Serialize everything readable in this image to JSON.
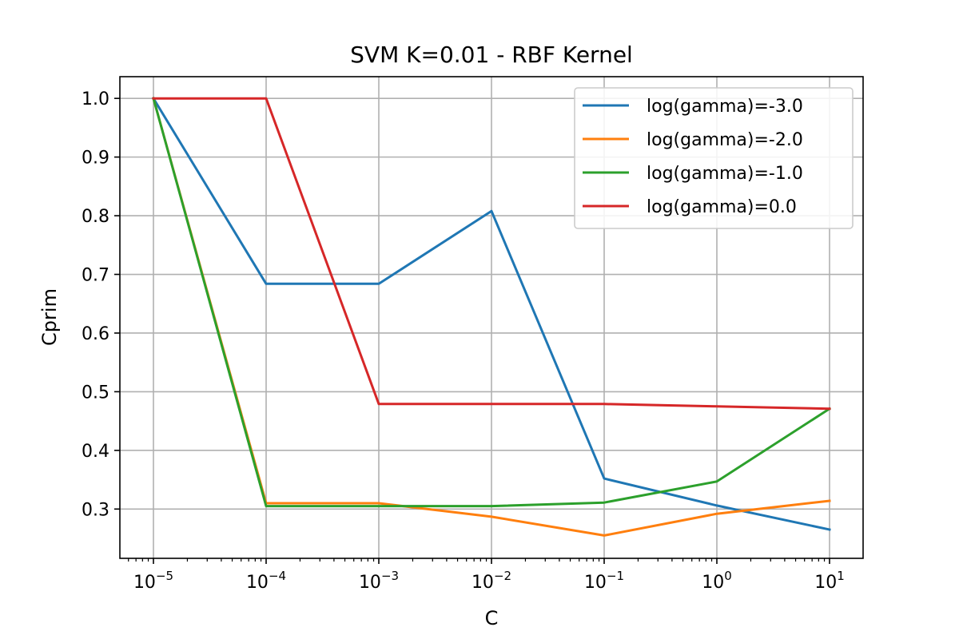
{
  "chart_data": {
    "type": "line",
    "title": "SVM K=0.01 - RBF Kernel",
    "xlabel": "C",
    "ylabel": "Cprim",
    "xscale": "log",
    "x": [
      1e-05,
      0.0001,
      0.001,
      0.01,
      0.1,
      1,
      10
    ],
    "x_tick_labels": [
      {
        "base": "10",
        "exp": "−5"
      },
      {
        "base": "10",
        "exp": "−4"
      },
      {
        "base": "10",
        "exp": "−3"
      },
      {
        "base": "10",
        "exp": "−2"
      },
      {
        "base": "10",
        "exp": "−1"
      },
      {
        "base": "10",
        "exp": "0"
      },
      {
        "base": "10",
        "exp": "1"
      }
    ],
    "y_ticks": [
      "0.3",
      "0.4",
      "0.5",
      "0.6",
      "0.7",
      "0.8",
      "0.9",
      "1.0"
    ],
    "ylim": [
      0.216,
      1.037
    ],
    "grid": true,
    "legend_position": "top-right",
    "series": [
      {
        "name": "log(gamma)=-3.0",
        "color": "#1f77b4",
        "values": [
          1.0,
          0.684,
          0.684,
          0.808,
          0.352,
          0.306,
          0.265
        ]
      },
      {
        "name": "log(gamma)=-2.0",
        "color": "#ff7f0e",
        "values": [
          1.0,
          0.31,
          0.31,
          0.287,
          0.255,
          0.292,
          0.314
        ]
      },
      {
        "name": "log(gamma)=-1.0",
        "color": "#2ca02c",
        "values": [
          1.0,
          0.305,
          0.305,
          0.305,
          0.311,
          0.347,
          0.471
        ]
      },
      {
        "name": "log(gamma)=0.0",
        "color": "#d62728",
        "values": [
          1.0,
          1.0,
          0.479,
          0.479,
          0.479,
          0.475,
          0.471
        ]
      }
    ]
  }
}
